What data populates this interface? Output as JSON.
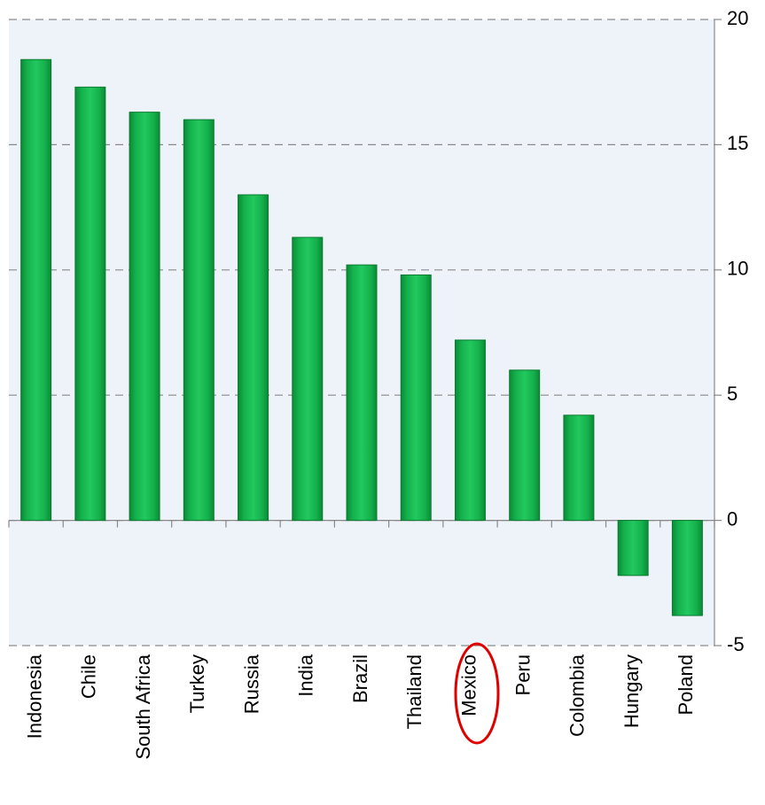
{
  "chart_data": {
    "type": "bar",
    "categories": [
      "Indonesia",
      "Chile",
      "South Africa",
      "Turkey",
      "Russia",
      "India",
      "Brazil",
      "Thailand",
      "Mexico",
      "Peru",
      "Colombia",
      "Hungary",
      "Poland"
    ],
    "values": [
      18.4,
      17.3,
      16.3,
      16.0,
      13.0,
      11.3,
      10.2,
      9.8,
      7.2,
      6.0,
      4.2,
      -2.2,
      -3.8
    ],
    "color": "#14b04c",
    "ylim": [
      -5,
      20
    ],
    "yticks": [
      -5,
      0,
      5,
      10,
      15,
      20
    ],
    "grid": true
  }
}
